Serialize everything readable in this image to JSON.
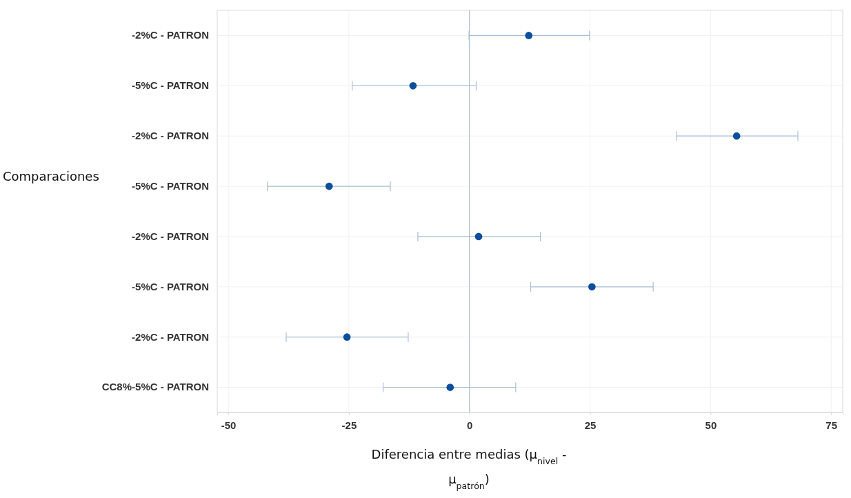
{
  "chart_data": {
    "type": "scatter",
    "orientation": "horizontal",
    "xlabel": "Diferencia entre medias (μ$_{nivel}$ - μ$_{patrón}$)",
    "ylabel": "Comparaciones",
    "categories": [
      "-2%C - PATRON",
      "-5%C - PATRON",
      "-2%C - PATRON",
      "-5%C - PATRON",
      "-2%C - PATRON",
      "-5%C - PATRON",
      "-2%C - PATRON",
      "CC8%-5%C - PATRON"
    ],
    "series": [
      {
        "color": "#0d4f9c",
        "values": [
          12.3,
          -11.7,
          55.4,
          -29.1,
          1.9,
          25.4,
          -25.4,
          -4.0
        ],
        "errors": [
          [
            -0.1,
            24.9
          ],
          [
            -24.3,
            1.4
          ],
          [
            42.9,
            68.1
          ],
          [
            -41.9,
            -16.4
          ],
          [
            -10.7,
            14.7
          ],
          [
            12.7,
            38.1
          ],
          [
            -38.0,
            -12.7
          ],
          [
            -17.9,
            9.6
          ]
        ]
      }
    ],
    "xlim": [
      -52.3,
      77.4
    ],
    "xticks": [
      -50,
      -25,
      0,
      25,
      50,
      75
    ],
    "grid": true,
    "marker": "circle",
    "ref_lines": [
      {
        "axis": "x",
        "value": 0,
        "color": "#b4c3d3"
      }
    ]
  }
}
